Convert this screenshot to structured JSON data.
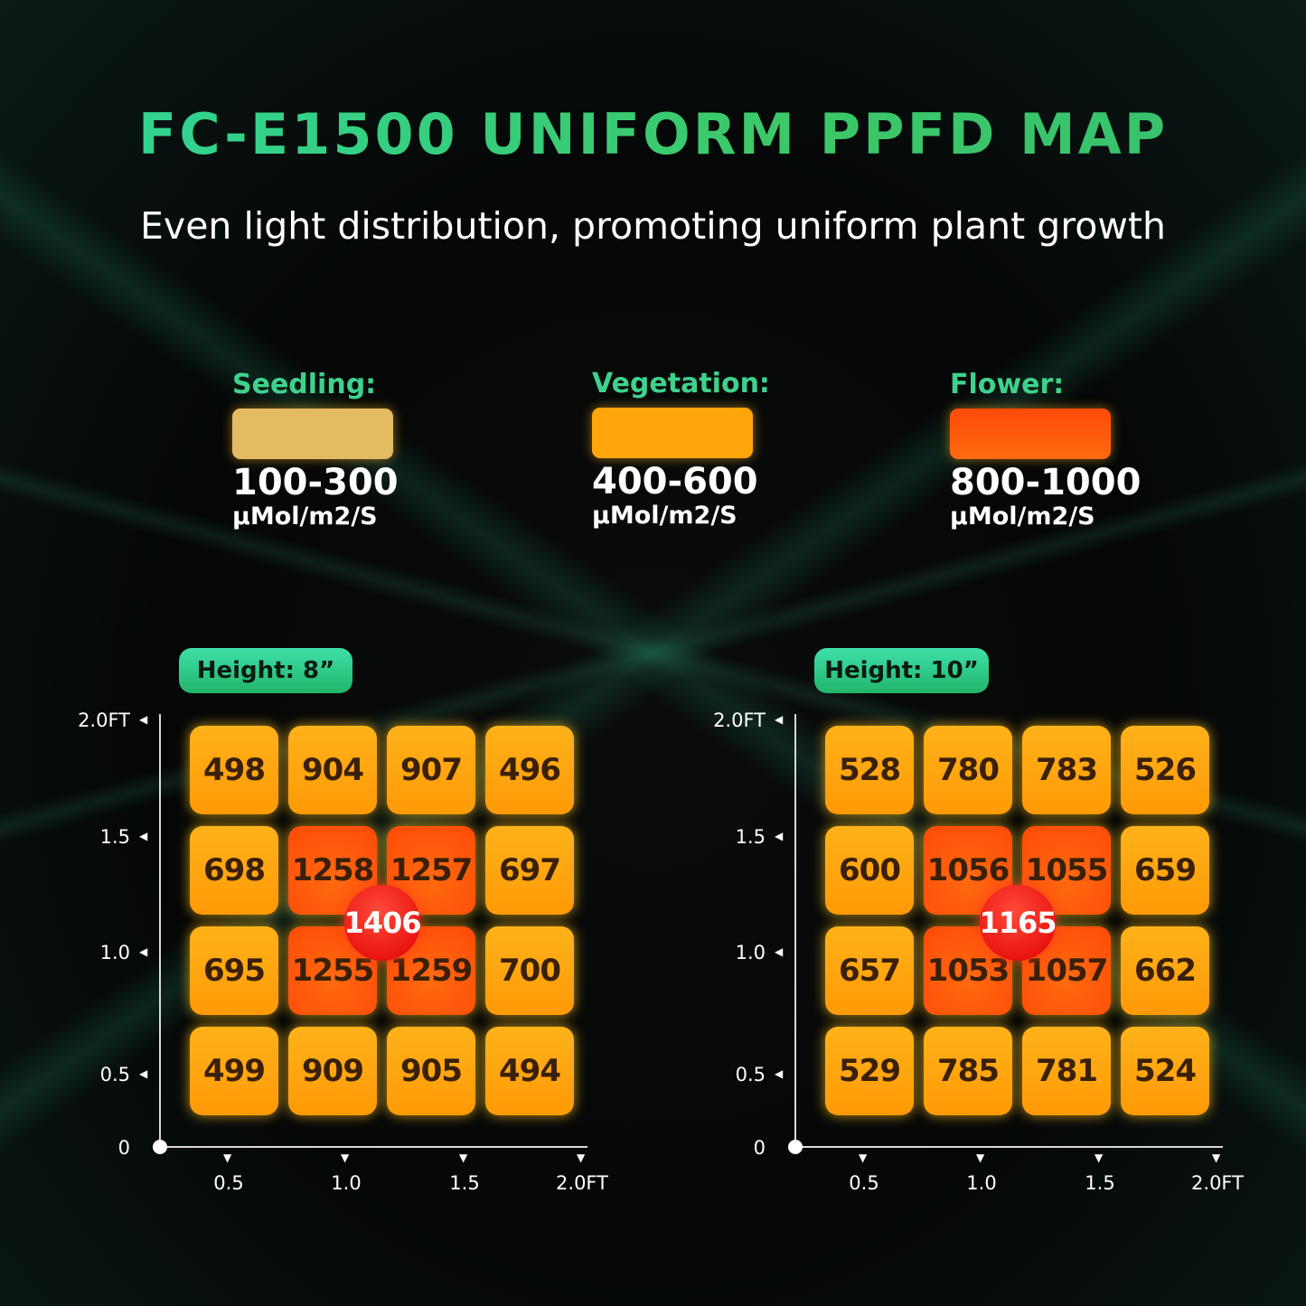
{
  "header": {
    "title": "FC-E1500 UNIFORM PPFD MAP",
    "subtitle": "Even light distribution, promoting uniform plant growth"
  },
  "legend": [
    {
      "label": "Seedling:",
      "range": "100-300",
      "unit": "µMol/m2/S",
      "color": "#e2bb62"
    },
    {
      "label": "Vegetation:",
      "range": "400-600",
      "unit": "µMol/m2/S",
      "color": "#ffa50a"
    },
    {
      "label": "Flower:",
      "range": "800-1000",
      "unit": "µMol/m2/S",
      "color": "#ff5008"
    }
  ],
  "colors": {
    "cell": "#ffa50a",
    "hot_cell": "#ff5008",
    "peak": "#e00000",
    "accent": "#2fd08a"
  },
  "chart_data": [
    {
      "type": "heatmap",
      "title": "Height: 8”",
      "x_ticks": [
        "0",
        "0.5",
        "1.0",
        "1.5",
        "2.0FT"
      ],
      "y_ticks": [
        "0",
        "0.5",
        "1.0",
        "1.5",
        "2.0FT"
      ],
      "rows_top_to_bottom": [
        [
          498,
          904,
          907,
          496
        ],
        [
          698,
          1258,
          1257,
          697
        ],
        [
          695,
          1255,
          1259,
          700
        ],
        [
          499,
          909,
          905,
          494
        ]
      ],
      "center_value": 1406
    },
    {
      "type": "heatmap",
      "title": "Height: 10”",
      "x_ticks": [
        "0",
        "0.5",
        "1.0",
        "1.5",
        "2.0FT"
      ],
      "y_ticks": [
        "0",
        "0.5",
        "1.0",
        "1.5",
        "2.0FT"
      ],
      "rows_top_to_bottom": [
        [
          528,
          780,
          783,
          526
        ],
        [
          600,
          1056,
          1055,
          659
        ],
        [
          657,
          1053,
          1057,
          662
        ],
        [
          529,
          785,
          781,
          524
        ]
      ],
      "center_value": 1165
    }
  ]
}
